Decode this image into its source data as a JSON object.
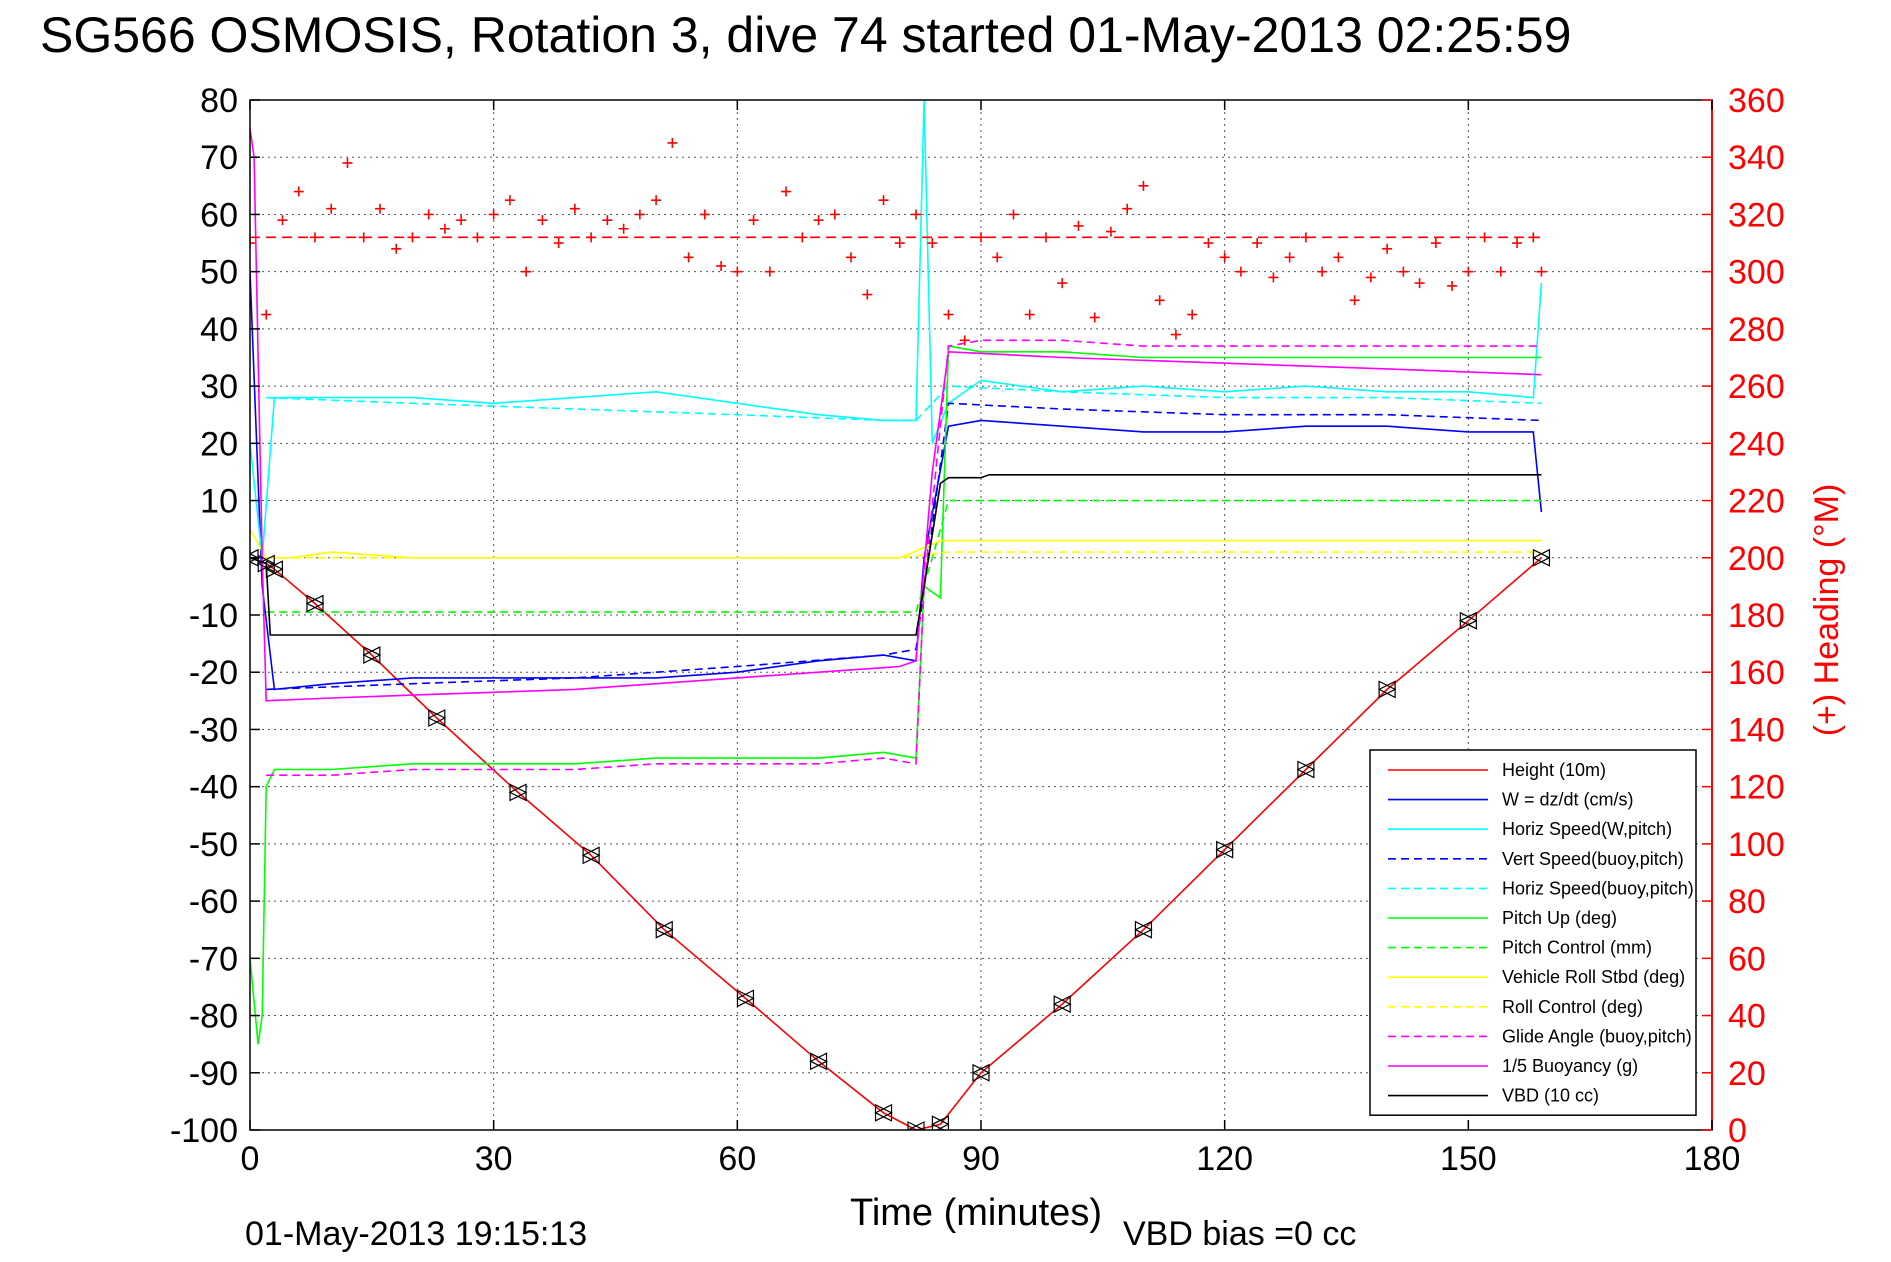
{
  "chart_data": {
    "type": "line",
    "title": "SG566 OSMOSIS, Rotation 3, dive 74 started 01-May-2013 02:25:59",
    "xlabel": "Time (minutes)",
    "ylabel_right": "(+) Heading (°M)",
    "xlim": [
      0,
      180
    ],
    "ylim": [
      -100,
      80
    ],
    "ylim_right": [
      0,
      360
    ],
    "x_ticks": [
      0,
      30,
      60,
      90,
      120,
      150,
      180
    ],
    "y_ticks": [
      80,
      70,
      60,
      50,
      40,
      30,
      20,
      10,
      0,
      -10,
      -20,
      -30,
      -40,
      -50,
      -60,
      -70,
      -80,
      -90,
      -100
    ],
    "y_ticks_right": [
      360,
      340,
      320,
      300,
      280,
      260,
      240,
      220,
      200,
      180,
      160,
      140,
      120,
      100,
      80,
      60,
      40,
      20,
      0
    ],
    "grid": true,
    "legend_position": "lower-right",
    "footer_left": "01-May-2013 19:15:13",
    "footer_right": "VBD bias =0 cc",
    "series": [
      {
        "name": "Height (10m)",
        "color": "#ff0000",
        "dash": "solid",
        "x": [
          0,
          2,
          3,
          8,
          15,
          23,
          33,
          42,
          51,
          61,
          70,
          78,
          82,
          85,
          90,
          100,
          110,
          120,
          130,
          140,
          150,
          159
        ],
        "y": [
          0,
          -1,
          -2,
          -8,
          -17,
          -28,
          -41,
          -52,
          -65,
          -77,
          -88,
          -97,
          -100,
          -99,
          -90,
          -78,
          -65,
          -51,
          -37,
          -23,
          -11,
          0
        ]
      },
      {
        "name": "W = dz/dt (cm/s)",
        "color": "#0000ff",
        "dash": "solid",
        "x": [
          0,
          1.5,
          3,
          10,
          20,
          30,
          40,
          50,
          60,
          70,
          78,
          82,
          83,
          86,
          90,
          100,
          110,
          120,
          130,
          140,
          150,
          158,
          159
        ],
        "y": [
          50,
          -5,
          -23,
          -22,
          -21,
          -21,
          -21,
          -21,
          -20,
          -18,
          -17,
          -18,
          0,
          23,
          24,
          23,
          22,
          22,
          23,
          23,
          22,
          22,
          8
        ]
      },
      {
        "name": "Horiz Speed(W,pitch)",
        "color": "#00ffff",
        "dash": "solid",
        "x": [
          0,
          1.5,
          3,
          10,
          20,
          30,
          40,
          50,
          60,
          70,
          78,
          82,
          83,
          84,
          86,
          90,
          100,
          110,
          120,
          130,
          140,
          150,
          158,
          159
        ],
        "y": [
          20,
          0,
          28,
          28,
          28,
          27,
          28,
          29,
          27,
          25,
          24,
          24,
          80,
          20,
          27,
          31,
          29,
          30,
          29,
          30,
          29,
          29,
          28,
          48
        ]
      },
      {
        "name": "Vert Speed(buoy,pitch)",
        "color": "#0000ff",
        "dash": "dashed",
        "x": [
          2,
          20,
          40,
          60,
          78,
          82,
          86,
          100,
          120,
          140,
          159
        ],
        "y": [
          -23,
          -22,
          -21,
          -19,
          -17,
          -16,
          27,
          26,
          25,
          25,
          24
        ]
      },
      {
        "name": "Horiz Speed(buoy,pitch)",
        "color": "#00ffff",
        "dash": "dashed",
        "x": [
          2,
          20,
          40,
          60,
          78,
          82,
          86,
          100,
          120,
          140,
          159
        ],
        "y": [
          28,
          27,
          26,
          25,
          24,
          24,
          30,
          29,
          28,
          28,
          27
        ]
      },
      {
        "name": "Pitch Up (deg)",
        "color": "#00ff00",
        "dash": "solid",
        "x": [
          0,
          1,
          1.5,
          2,
          3,
          10,
          20,
          30,
          40,
          50,
          60,
          70,
          78,
          82,
          83,
          85,
          86,
          90,
          100,
          110,
          120,
          130,
          140,
          150,
          159
        ],
        "y": [
          -70,
          -85,
          -80,
          -40,
          -37,
          -37,
          -36,
          -36,
          -36,
          -35,
          -35,
          -35,
          -34,
          -35,
          -5,
          -7,
          37,
          36,
          36,
          35,
          35,
          35,
          35,
          35,
          35
        ]
      },
      {
        "name": "Pitch Control (mm)",
        "color": "#00ff00",
        "dash": "dashed",
        "x": [
          2,
          82,
          84,
          86,
          159
        ],
        "y": [
          -9.5,
          -9.5,
          0,
          10,
          10
        ]
      },
      {
        "name": "Vehicle Roll Stbd (deg)",
        "color": "#ffff00",
        "dash": "solid",
        "x": [
          0,
          2,
          5,
          10,
          20,
          30,
          40,
          50,
          60,
          70,
          80,
          85,
          90,
          100,
          110,
          120,
          130,
          140,
          150,
          159
        ],
        "y": [
          5,
          0,
          0,
          1,
          0,
          0,
          0,
          0,
          0,
          0,
          0,
          3,
          3,
          3,
          3,
          3,
          3,
          3,
          3,
          3
        ]
      },
      {
        "name": "Roll Control (deg)",
        "color": "#ffff00",
        "dash": "dashed",
        "x": [
          2,
          80,
          86,
          159
        ],
        "y": [
          0,
          0,
          1,
          1
        ]
      },
      {
        "name": "Glide Angle (buoy,pitch)",
        "color": "#ff00ff",
        "dash": "dashed",
        "x": [
          2,
          10,
          20,
          30,
          40,
          50,
          60,
          70,
          78,
          82,
          83,
          86,
          90,
          100,
          110,
          120,
          130,
          140,
          150,
          159
        ],
        "y": [
          -38,
          -38,
          -37,
          -37,
          -37,
          -36,
          -36,
          -36,
          -35,
          -36,
          -5,
          37,
          38,
          38,
          37,
          37,
          37,
          37,
          37,
          37
        ]
      },
      {
        "name": "1/5 Buoyancy (g)",
        "color": "#ff00ff",
        "dash": "solid",
        "x": [
          0,
          0.5,
          1.5,
          2,
          10,
          20,
          30,
          40,
          50,
          60,
          70,
          80,
          82,
          84,
          86,
          100,
          120,
          140,
          159
        ],
        "y": [
          75,
          70,
          0,
          -25,
          -24.5,
          -24,
          -23.5,
          -23,
          -22,
          -21,
          -20,
          -19,
          -18,
          15,
          36,
          35,
          34,
          33,
          32
        ]
      },
      {
        "name": "VBD (10 cc)",
        "color": "#000000",
        "dash": "solid",
        "x": [
          0,
          2,
          2.5,
          82,
          83,
          85,
          86,
          90,
          91,
          159
        ],
        "y": [
          0,
          -1,
          -13.5,
          -13.5,
          -5,
          13,
          14,
          14,
          14.5,
          14.5
        ]
      }
    ],
    "heading": {
      "name": "(+) Heading",
      "color": "#ff0000",
      "reference_deg": 312,
      "x": [
        0,
        2,
        4,
        6,
        8,
        10,
        12,
        14,
        16,
        18,
        20,
        22,
        24,
        26,
        28,
        30,
        32,
        34,
        36,
        38,
        40,
        42,
        44,
        46,
        48,
        50,
        52,
        54,
        56,
        58,
        60,
        62,
        64,
        66,
        68,
        70,
        72,
        74,
        76,
        78,
        80,
        82,
        84,
        86,
        88,
        90,
        92,
        94,
        96,
        98,
        100,
        102,
        104,
        106,
        108,
        110,
        112,
        114,
        116,
        118,
        120,
        122,
        124,
        126,
        128,
        130,
        132,
        134,
        136,
        138,
        140,
        142,
        144,
        146,
        148,
        150,
        152,
        154,
        156,
        158,
        159
      ],
      "y": [
        310,
        285,
        318,
        328,
        312,
        322,
        338,
        312,
        322,
        308,
        312,
        320,
        315,
        318,
        312,
        320,
        325,
        300,
        318,
        310,
        322,
        312,
        318,
        315,
        320,
        325,
        345,
        305,
        320,
        302,
        300,
        318,
        300,
        328,
        312,
        318,
        320,
        305,
        292,
        325,
        310,
        320,
        310,
        285,
        276,
        312,
        305,
        320,
        285,
        312,
        296,
        316,
        284,
        314,
        322,
        330,
        290,
        278,
        285,
        310,
        305,
        300,
        310,
        298,
        305,
        312,
        300,
        305,
        290,
        298,
        308,
        300,
        296,
        310,
        295,
        300,
        312,
        300,
        310,
        312,
        300
      ]
    }
  }
}
